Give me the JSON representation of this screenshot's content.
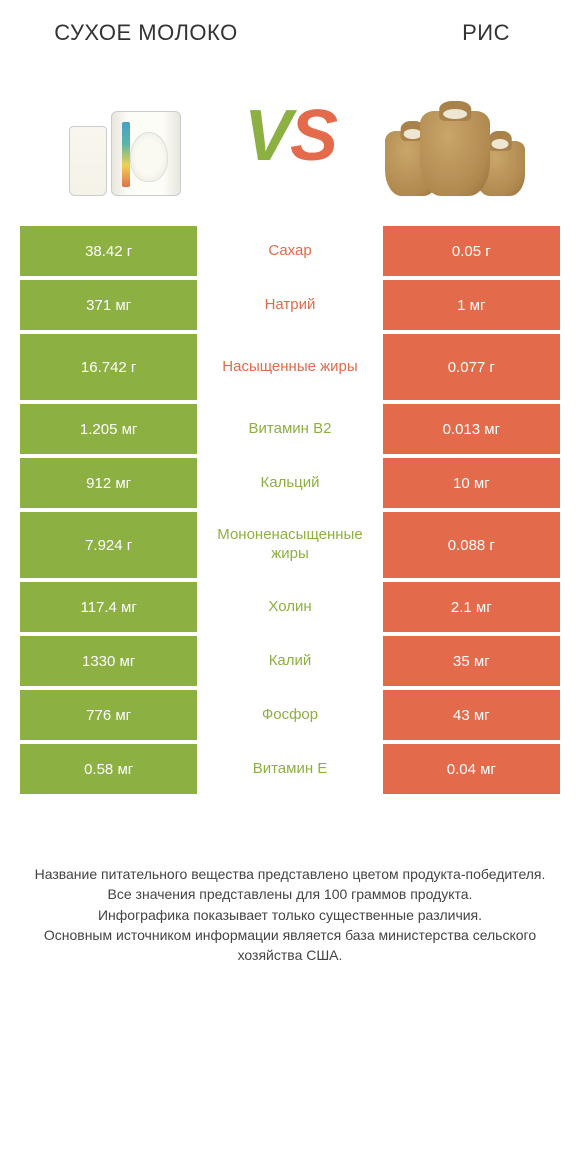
{
  "colors": {
    "left": "#8db042",
    "right": "#e36a4a",
    "left_faded": "#f5f8ee",
    "right_faded": "#fdf1ed",
    "background": "#ffffff"
  },
  "header": {
    "left_title": "Сухое молоко",
    "right_title": "Рис",
    "vs_v": "V",
    "vs_s": "S"
  },
  "rows": [
    {
      "left": "38.42 г",
      "label": "Сахар",
      "right": "0.05 г",
      "winner": "left",
      "tall": false
    },
    {
      "left": "371 мг",
      "label": "Натрий",
      "right": "1 мг",
      "winner": "left",
      "tall": false
    },
    {
      "left": "16.742 г",
      "label": "Насыщенные жиры",
      "right": "0.077 г",
      "winner": "left",
      "tall": true
    },
    {
      "left": "1.205 мг",
      "label": "Витамин B2",
      "right": "0.013 мг",
      "winner": "right",
      "tall": false
    },
    {
      "left": "912 мг",
      "label": "Кальций",
      "right": "10 мг",
      "winner": "right",
      "tall": false
    },
    {
      "left": "7.924 г",
      "label": "Мононенасыщенные жиры",
      "right": "0.088 г",
      "winner": "right",
      "tall": true
    },
    {
      "left": "117.4 мг",
      "label": "Холин",
      "right": "2.1 мг",
      "winner": "right",
      "tall": false
    },
    {
      "left": "1330 мг",
      "label": "Калий",
      "right": "35 мг",
      "winner": "right",
      "tall": false
    },
    {
      "left": "776 мг",
      "label": "Фосфор",
      "right": "43 мг",
      "winner": "right",
      "tall": false
    },
    {
      "left": "0.58 мг",
      "label": "Витамин E",
      "right": "0.04 мг",
      "winner": "right",
      "tall": false
    }
  ],
  "footer": {
    "line1": "Название питательного вещества представлено цветом продукта-победителя.",
    "line2": "Все значения представлены для 100 граммов продукта.",
    "line3": "Инфографика показывает только существенные различия.",
    "line4": "Основным источником информации является база министерства сельского хозяйства США."
  },
  "typography": {
    "title_fontsize": 22,
    "vs_fontsize": 72,
    "cell_fontsize": 15,
    "footer_fontsize": 14
  }
}
